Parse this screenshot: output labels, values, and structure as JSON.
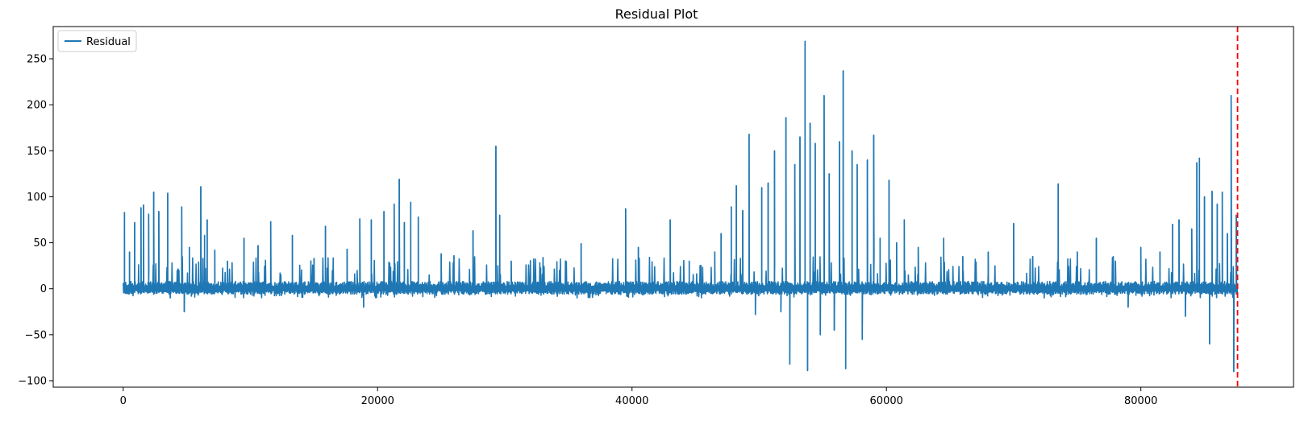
{
  "chart_data": {
    "type": "line",
    "title": "Residual Plot",
    "xlabel": "",
    "ylabel": "",
    "xlim": [
      -5500,
      92000
    ],
    "ylim": [
      -107,
      285
    ],
    "xticks": [
      0,
      20000,
      40000,
      60000,
      80000
    ],
    "xtick_labels": [
      "0",
      "20000",
      "40000",
      "60000",
      "80000"
    ],
    "yticks": [
      -100,
      -50,
      0,
      50,
      100,
      150,
      200,
      250
    ],
    "ytick_labels": [
      "−100",
      "−50",
      "0",
      "50",
      "100",
      "150",
      "200",
      "250"
    ],
    "grid": false,
    "legend": {
      "placement": "top-left",
      "entries": [
        "Residual"
      ]
    },
    "vline": {
      "x": 87600,
      "color": "#ff0000",
      "style": "dashed"
    },
    "series": [
      {
        "name": "Residual",
        "color": "#1f77b4",
        "x_start": 0,
        "x_end": 87600,
        "baseline": {
          "max": 8,
          "min": -6
        },
        "spikes": [
          {
            "x": 100,
            "y": 83
          },
          {
            "x": 200,
            "y": -5
          },
          {
            "x": 500,
            "y": 40
          },
          {
            "x": 900,
            "y": 72
          },
          {
            "x": 1400,
            "y": 88
          },
          {
            "x": 1600,
            "y": 91
          },
          {
            "x": 2000,
            "y": 81
          },
          {
            "x": 2400,
            "y": 105
          },
          {
            "x": 2800,
            "y": 84
          },
          {
            "x": 3500,
            "y": 104
          },
          {
            "x": 3700,
            "y": -10
          },
          {
            "x": 4600,
            "y": 89
          },
          {
            "x": 4800,
            "y": -25
          },
          {
            "x": 5200,
            "y": 45
          },
          {
            "x": 6100,
            "y": 111
          },
          {
            "x": 6400,
            "y": 58
          },
          {
            "x": 6600,
            "y": 75
          },
          {
            "x": 7200,
            "y": 42
          },
          {
            "x": 8200,
            "y": 30
          },
          {
            "x": 9500,
            "y": 55
          },
          {
            "x": 10600,
            "y": 47
          },
          {
            "x": 11600,
            "y": 73
          },
          {
            "x": 13300,
            "y": 58
          },
          {
            "x": 15000,
            "y": 33
          },
          {
            "x": 15900,
            "y": 68
          },
          {
            "x": 17600,
            "y": 43
          },
          {
            "x": 18600,
            "y": 76
          },
          {
            "x": 18900,
            "y": -20
          },
          {
            "x": 19500,
            "y": 75
          },
          {
            "x": 20500,
            "y": 84
          },
          {
            "x": 21300,
            "y": 92
          },
          {
            "x": 21700,
            "y": 119
          },
          {
            "x": 22100,
            "y": 72
          },
          {
            "x": 22600,
            "y": 94
          },
          {
            "x": 23200,
            "y": 78
          },
          {
            "x": 25000,
            "y": 38
          },
          {
            "x": 26000,
            "y": 36
          },
          {
            "x": 27500,
            "y": 63
          },
          {
            "x": 29300,
            "y": 155
          },
          {
            "x": 29600,
            "y": 80
          },
          {
            "x": 30500,
            "y": 30
          },
          {
            "x": 33000,
            "y": 34
          },
          {
            "x": 36000,
            "y": 49
          },
          {
            "x": 39500,
            "y": 87
          },
          {
            "x": 40500,
            "y": 45
          },
          {
            "x": 43000,
            "y": 75
          },
          {
            "x": 44500,
            "y": 30
          },
          {
            "x": 46500,
            "y": 40
          },
          {
            "x": 47000,
            "y": 60
          },
          {
            "x": 47800,
            "y": 89
          },
          {
            "x": 48200,
            "y": 112
          },
          {
            "x": 48700,
            "y": 85
          },
          {
            "x": 49200,
            "y": 168
          },
          {
            "x": 49700,
            "y": -28
          },
          {
            "x": 50200,
            "y": 110
          },
          {
            "x": 50700,
            "y": 115
          },
          {
            "x": 51200,
            "y": 150
          },
          {
            "x": 51700,
            "y": -25
          },
          {
            "x": 52100,
            "y": 186
          },
          {
            "x": 52400,
            "y": -82
          },
          {
            "x": 52800,
            "y": 135
          },
          {
            "x": 53200,
            "y": 165
          },
          {
            "x": 53600,
            "y": 269
          },
          {
            "x": 53800,
            "y": -89
          },
          {
            "x": 54000,
            "y": 180
          },
          {
            "x": 54400,
            "y": 158
          },
          {
            "x": 54800,
            "y": -50
          },
          {
            "x": 55100,
            "y": 210
          },
          {
            "x": 55500,
            "y": 125
          },
          {
            "x": 55900,
            "y": -45
          },
          {
            "x": 56300,
            "y": 160
          },
          {
            "x": 56600,
            "y": 237
          },
          {
            "x": 56800,
            "y": -87
          },
          {
            "x": 57300,
            "y": 150
          },
          {
            "x": 57700,
            "y": 135
          },
          {
            "x": 58100,
            "y": -55
          },
          {
            "x": 58500,
            "y": 140
          },
          {
            "x": 59000,
            "y": 167
          },
          {
            "x": 59500,
            "y": 55
          },
          {
            "x": 60200,
            "y": 118
          },
          {
            "x": 60800,
            "y": 50
          },
          {
            "x": 61400,
            "y": 75
          },
          {
            "x": 62500,
            "y": 45
          },
          {
            "x": 64500,
            "y": 55
          },
          {
            "x": 66000,
            "y": 35
          },
          {
            "x": 68000,
            "y": 40
          },
          {
            "x": 70000,
            "y": 71
          },
          {
            "x": 71500,
            "y": 35
          },
          {
            "x": 73500,
            "y": 114
          },
          {
            "x": 75000,
            "y": 40
          },
          {
            "x": 76500,
            "y": 55
          },
          {
            "x": 78000,
            "y": 30
          },
          {
            "x": 79000,
            "y": -20
          },
          {
            "x": 80000,
            "y": 45
          },
          {
            "x": 81500,
            "y": 40
          },
          {
            "x": 82500,
            "y": 70
          },
          {
            "x": 83000,
            "y": 75
          },
          {
            "x": 83500,
            "y": -30
          },
          {
            "x": 84000,
            "y": 65
          },
          {
            "x": 84400,
            "y": 137
          },
          {
            "x": 84600,
            "y": 142
          },
          {
            "x": 85000,
            "y": 100
          },
          {
            "x": 85400,
            "y": -60
          },
          {
            "x": 85600,
            "y": 106
          },
          {
            "x": 86000,
            "y": 92
          },
          {
            "x": 86400,
            "y": 105
          },
          {
            "x": 86800,
            "y": 60
          },
          {
            "x": 87100,
            "y": 210
          },
          {
            "x": 87300,
            "y": -90
          },
          {
            "x": 87500,
            "y": 80
          }
        ]
      }
    ]
  }
}
